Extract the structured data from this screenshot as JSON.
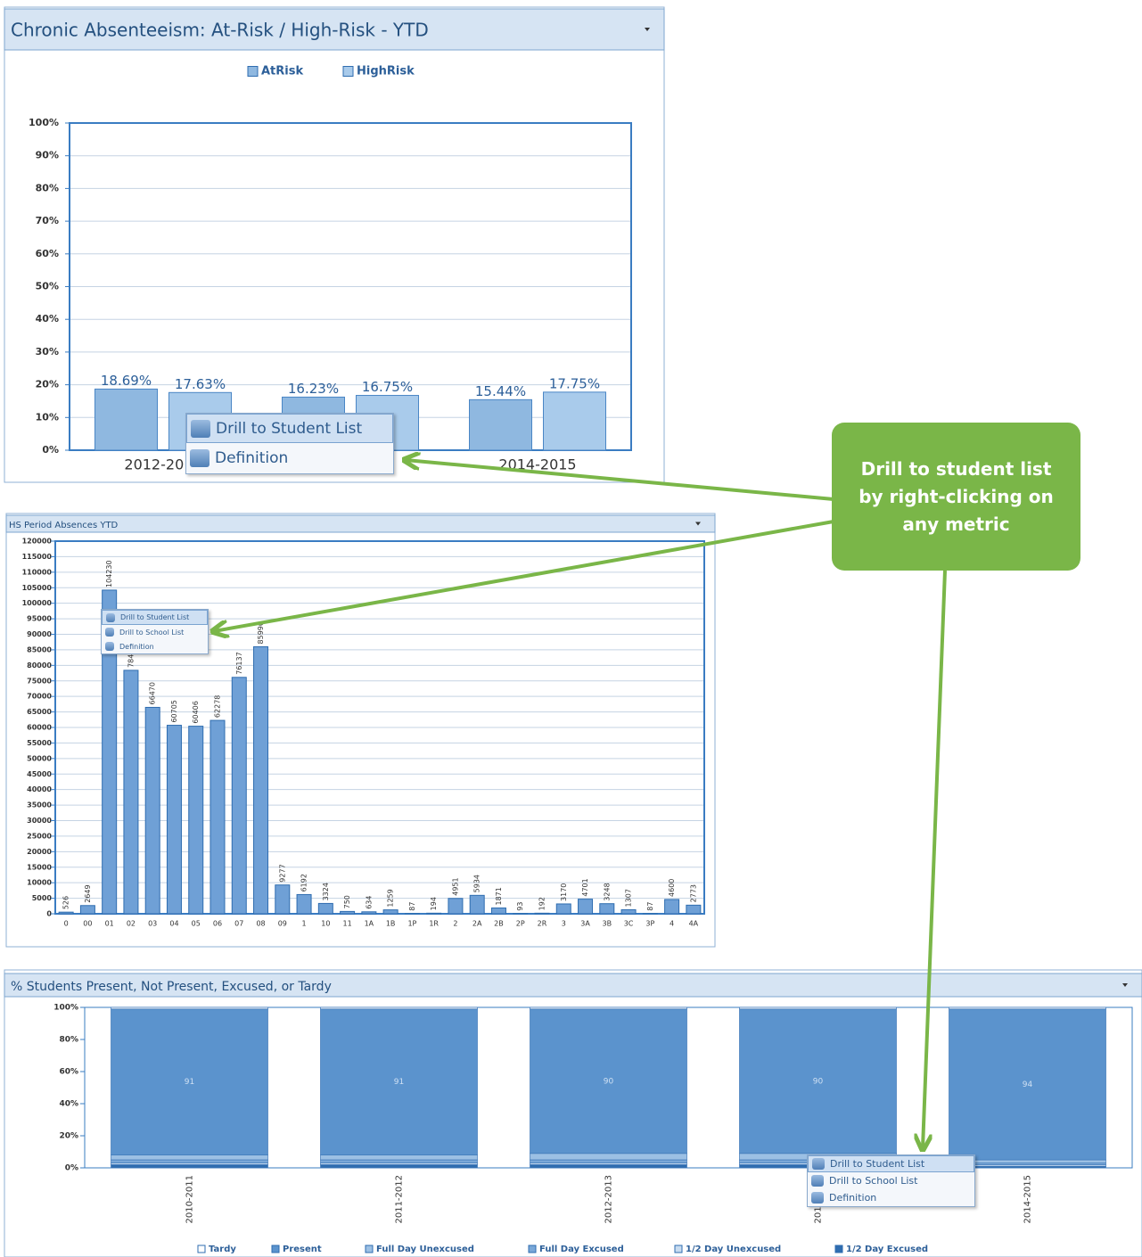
{
  "chart_data": [
    {
      "type": "bar",
      "title": "Chronic Absenteeism: At-Risk / High-Risk - YTD",
      "categories": [
        "2012-2013",
        null,
        "2014-2015"
      ],
      "series": [
        {
          "name": "AtRisk",
          "color": "#8fb8e0",
          "values": [
            18.69,
            16.23,
            15.44
          ],
          "value_labels": [
            "18.69%",
            "16.23%",
            "15.44%"
          ]
        },
        {
          "name": "HighRisk",
          "color": "#a9cbeb",
          "values": [
            17.63,
            16.75,
            17.75
          ],
          "value_labels": [
            "17.63%",
            "16.75%",
            "17.75%"
          ]
        }
      ],
      "ylim": [
        0,
        100
      ],
      "yticks": [
        {
          "value": 0,
          "label": "0%"
        },
        {
          "value": 10,
          "label": "10%"
        },
        {
          "value": 20,
          "label": "20%"
        },
        {
          "value": 30,
          "label": "30%"
        },
        {
          "value": 40,
          "label": "40%"
        },
        {
          "value": 50,
          "label": "50%"
        },
        {
          "value": 60,
          "label": "60%"
        },
        {
          "value": 70,
          "label": "70%"
        },
        {
          "value": 80,
          "label": "80%"
        },
        {
          "value": 90,
          "label": "90%"
        },
        {
          "value": 100,
          "label": "100%"
        }
      ],
      "grid": true,
      "legend": "top"
    },
    {
      "type": "bar",
      "title": "HS Period Absences YTD",
      "categories": [
        "0",
        "00",
        "01",
        "02",
        "03",
        "04",
        "05",
        "06",
        "07",
        "08",
        "09",
        "1",
        "10",
        "11",
        "1A",
        "1B",
        "1P",
        "1R",
        "2",
        "2A",
        "2B",
        "2P",
        "2R",
        "3",
        "3A",
        "3B",
        "3C",
        "3P",
        "4",
        "4A"
      ],
      "values": [
        526,
        2649,
        104230,
        78400,
        66470,
        60705,
        60406,
        62278,
        76137,
        85990,
        9277,
        6192,
        3324,
        750,
        634,
        1259,
        87,
        194,
        4951,
        5934,
        1871,
        93,
        192,
        3170,
        4701,
        3248,
        1307,
        87,
        4600,
        2773
      ],
      "color": "#6fa0d6",
      "ylim": [
        0,
        120000
      ],
      "yticks": [
        0,
        5000,
        10000,
        15000,
        20000,
        25000,
        30000,
        35000,
        40000,
        45000,
        50000,
        55000,
        60000,
        65000,
        70000,
        75000,
        80000,
        85000,
        90000,
        95000,
        100000,
        105000,
        110000,
        115000,
        120000
      ],
      "grid": true
    },
    {
      "type": "stacked_bar",
      "title": "% Students Present, Not Present, Excused, or Tardy",
      "categories": [
        "2010-2011",
        "2011-2012",
        "2012-2013",
        "2013-2014",
        "2014-2015"
      ],
      "series": [
        {
          "name": "Tardy",
          "color": "#ffffff",
          "values": [
            1,
            1,
            1,
            1,
            1
          ]
        },
        {
          "name": "Present",
          "color": "#5b93cd",
          "values": [
            91,
            91,
            90,
            90,
            94
          ],
          "show_labels": true
        },
        {
          "name": "Full Day Unexcused",
          "color": "#9cc0e4",
          "values": [
            3,
            3,
            4,
            4,
            2
          ]
        },
        {
          "name": "Full Day Excused",
          "color": "#7aa8d8",
          "values": [
            2,
            2,
            2,
            2,
            1
          ]
        },
        {
          "name": "1/2 Day Unexcused",
          "color": "#c8dcf0",
          "values": [
            1,
            1,
            1,
            1,
            1
          ]
        },
        {
          "name": "1/2 Day Excused",
          "color": "#2f6db0",
          "values": [
            2,
            2,
            2,
            2,
            1
          ]
        }
      ],
      "ylim": [
        0,
        100
      ],
      "yticks": [
        {
          "value": 0,
          "label": "0%"
        },
        {
          "value": 20,
          "label": "20%"
        },
        {
          "value": 40,
          "label": "40%"
        },
        {
          "value": 60,
          "label": "60%"
        },
        {
          "value": 80,
          "label": "80%"
        },
        {
          "value": 100,
          "label": "100%"
        }
      ],
      "grid": false,
      "legend": "bottom"
    }
  ],
  "menus": [
    {
      "items": [
        "Drill to Student List",
        "Definition"
      ]
    },
    {
      "items": [
        "Drill to Student List",
        "Drill to School List",
        "Definition"
      ]
    },
    {
      "items": [
        "Drill to Student List",
        "Drill to School List",
        "Definition"
      ]
    }
  ],
  "callout": {
    "text": "Drill to student list by right-clicking on any metric"
  }
}
